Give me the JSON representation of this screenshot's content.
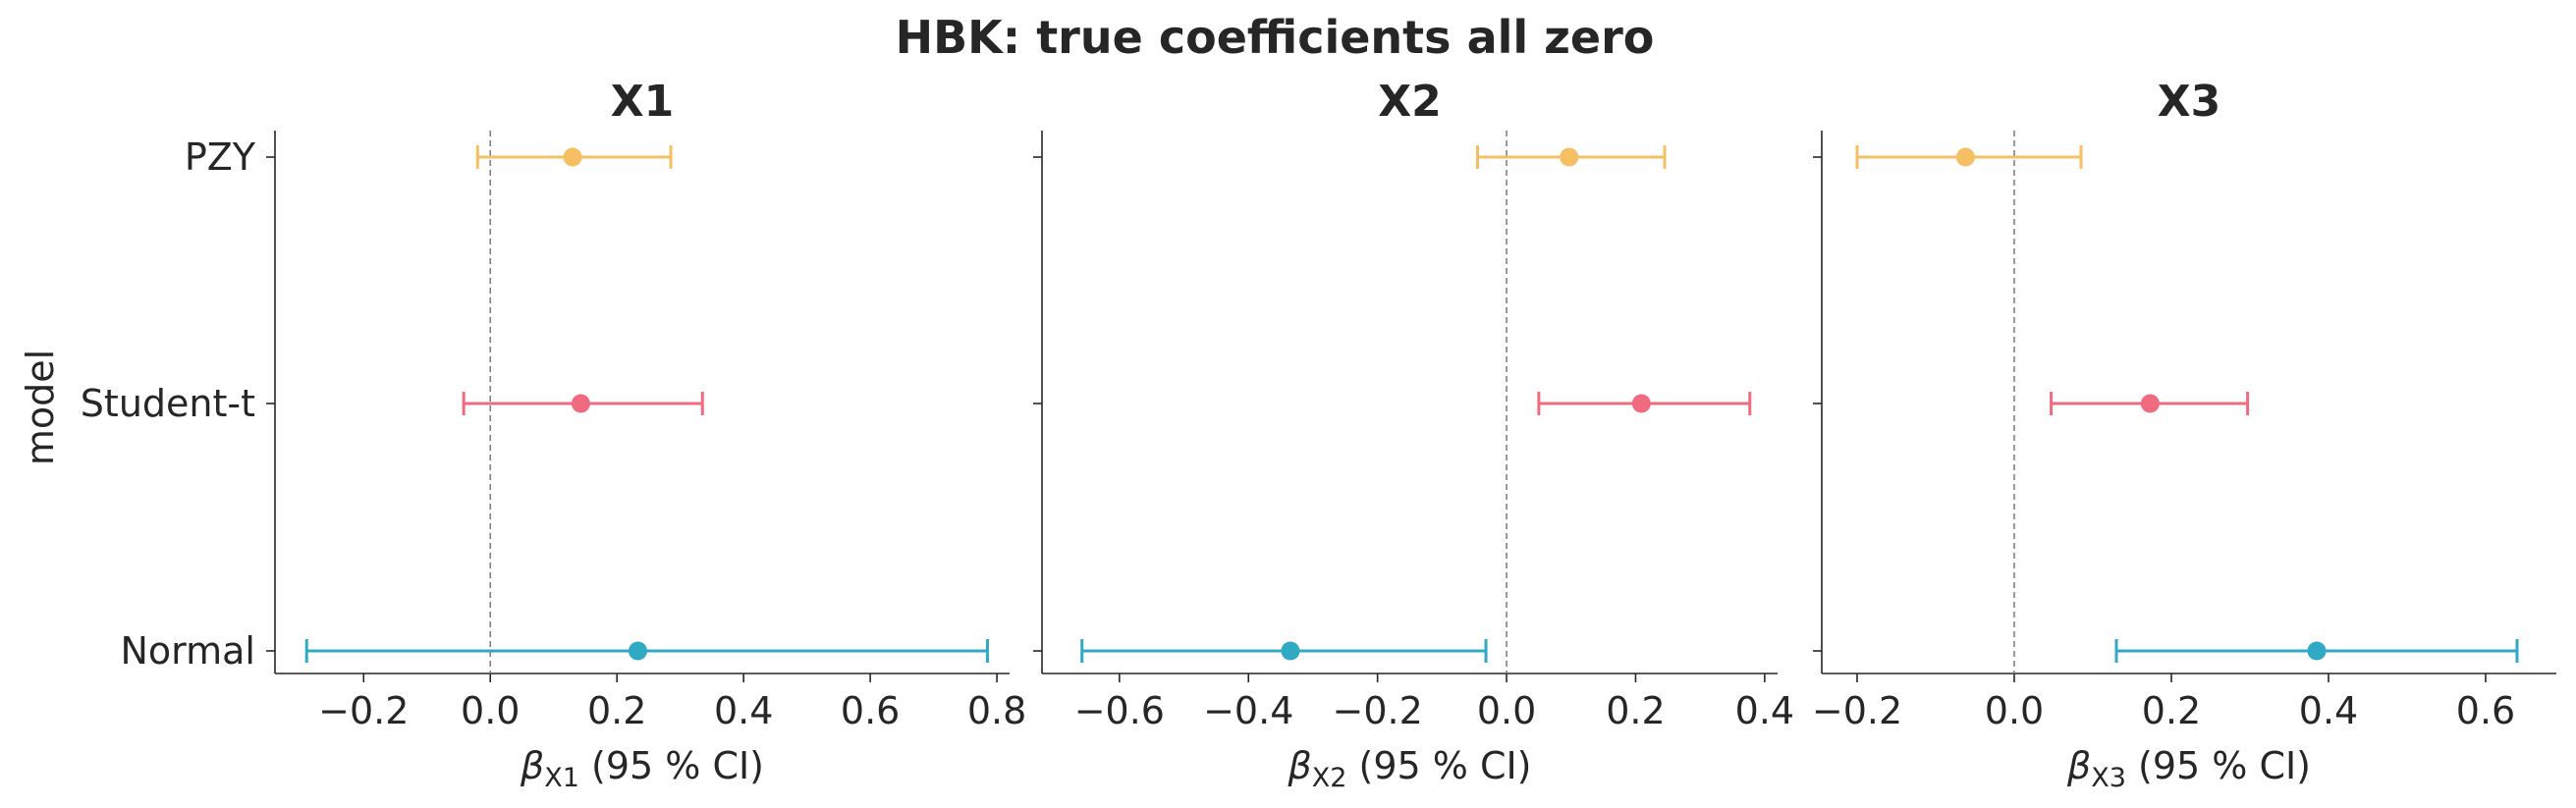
{
  "chart_data": {
    "type": "errorbar",
    "title": "HBK: true coefficients all zero",
    "ylabel": "model",
    "categories": [
      "PZY",
      "Student-t",
      "Normal"
    ],
    "series_colors": {
      "PZY": "#f5bf63",
      "Student-t": "#f06a80",
      "Normal": "#30a9c4"
    },
    "reference_line": 0,
    "grid": false,
    "panels": [
      {
        "title": "X1",
        "xlabel_symbol": "β",
        "xlabel_sub": "X1",
        "xlabel_rest": "  (95 % CI)",
        "xlim": [
          -0.34,
          0.82
        ],
        "xticks": [
          -0.2,
          0.0,
          0.2,
          0.4,
          0.6,
          0.8
        ],
        "xtick_labels": [
          "−0.2",
          "0.0",
          "0.2",
          "0.4",
          "0.6",
          "0.8"
        ],
        "points": [
          {
            "model": "PZY",
            "estimate": 0.13,
            "lower": -0.02,
            "upper": 0.285
          },
          {
            "model": "Student-t",
            "estimate": 0.143,
            "lower": -0.042,
            "upper": 0.335
          },
          {
            "model": "Normal",
            "estimate": 0.233,
            "lower": -0.29,
            "upper": 0.785
          }
        ]
      },
      {
        "title": "X2",
        "xlabel_symbol": "β",
        "xlabel_sub": "X2",
        "xlabel_rest": "  (95 % CI)",
        "xlim": [
          -0.72,
          0.42
        ],
        "xticks": [
          -0.6,
          -0.4,
          -0.2,
          0.0,
          0.2,
          0.4
        ],
        "xtick_labels": [
          "−0.6",
          "−0.4",
          "−0.2",
          "0.0",
          "0.2",
          "0.4"
        ],
        "points": [
          {
            "model": "PZY",
            "estimate": 0.097,
            "lower": -0.045,
            "upper": 0.245
          },
          {
            "model": "Student-t",
            "estimate": 0.209,
            "lower": 0.05,
            "upper": 0.377
          },
          {
            "model": "Normal",
            "estimate": -0.335,
            "lower": -0.658,
            "upper": -0.032
          }
        ]
      },
      {
        "title": "X3",
        "xlabel_symbol": "β",
        "xlabel_sub": "X3",
        "xlabel_rest": "  (95 % CI)",
        "xlim": [
          -0.245,
          0.69
        ],
        "xticks": [
          -0.2,
          0.0,
          0.2,
          0.4,
          0.6
        ],
        "xtick_labels": [
          "−0.2",
          "0.0",
          "0.2",
          "0.4",
          "0.6"
        ],
        "points": [
          {
            "model": "PZY",
            "estimate": -0.062,
            "lower": -0.2,
            "upper": 0.085
          },
          {
            "model": "Student-t",
            "estimate": 0.173,
            "lower": 0.047,
            "upper": 0.297
          },
          {
            "model": "Normal",
            "estimate": 0.385,
            "lower": 0.13,
            "upper": 0.64
          }
        ]
      }
    ]
  }
}
